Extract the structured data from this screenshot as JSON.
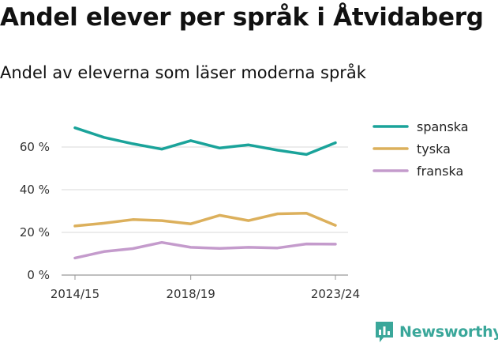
{
  "title": "Andel elever per språk i Åtvidaberg",
  "subtitle": "Andel av eleverna som läser moderna språk",
  "brand": {
    "name": "Newsworthy",
    "icon": "newsworthy-logo-icon"
  },
  "chart_data": {
    "type": "line",
    "x": [
      "2014/15",
      "2015/16",
      "2016/17",
      "2017/18",
      "2018/19",
      "2019/20",
      "2020/21",
      "2021/22",
      "2022/23",
      "2023/24"
    ],
    "x_tick_labels": [
      "2014/15",
      "2018/19",
      "2023/24"
    ],
    "y_ticks": [
      0,
      20,
      40,
      60
    ],
    "y_tick_labels": [
      "0 %",
      "20 %",
      "40 %",
      "60 %"
    ],
    "ylim": [
      0,
      70
    ],
    "grid": true,
    "legend_position": "top-right",
    "series": [
      {
        "name": "spanska",
        "color": "#1aa39a",
        "values": [
          69,
          64.5,
          61.5,
          59,
          63,
          59.5,
          61,
          58.5,
          56.5,
          62
        ]
      },
      {
        "name": "tyska",
        "color": "#dcb05c",
        "values": [
          23,
          24.3,
          26,
          25.5,
          24,
          28,
          25.5,
          28.7,
          29,
          23.3
        ]
      },
      {
        "name": "franska",
        "color": "#c49bcc",
        "values": [
          8,
          11,
          12.4,
          15.3,
          13,
          12.5,
          13,
          12.7,
          14.6,
          14.5
        ]
      }
    ]
  }
}
